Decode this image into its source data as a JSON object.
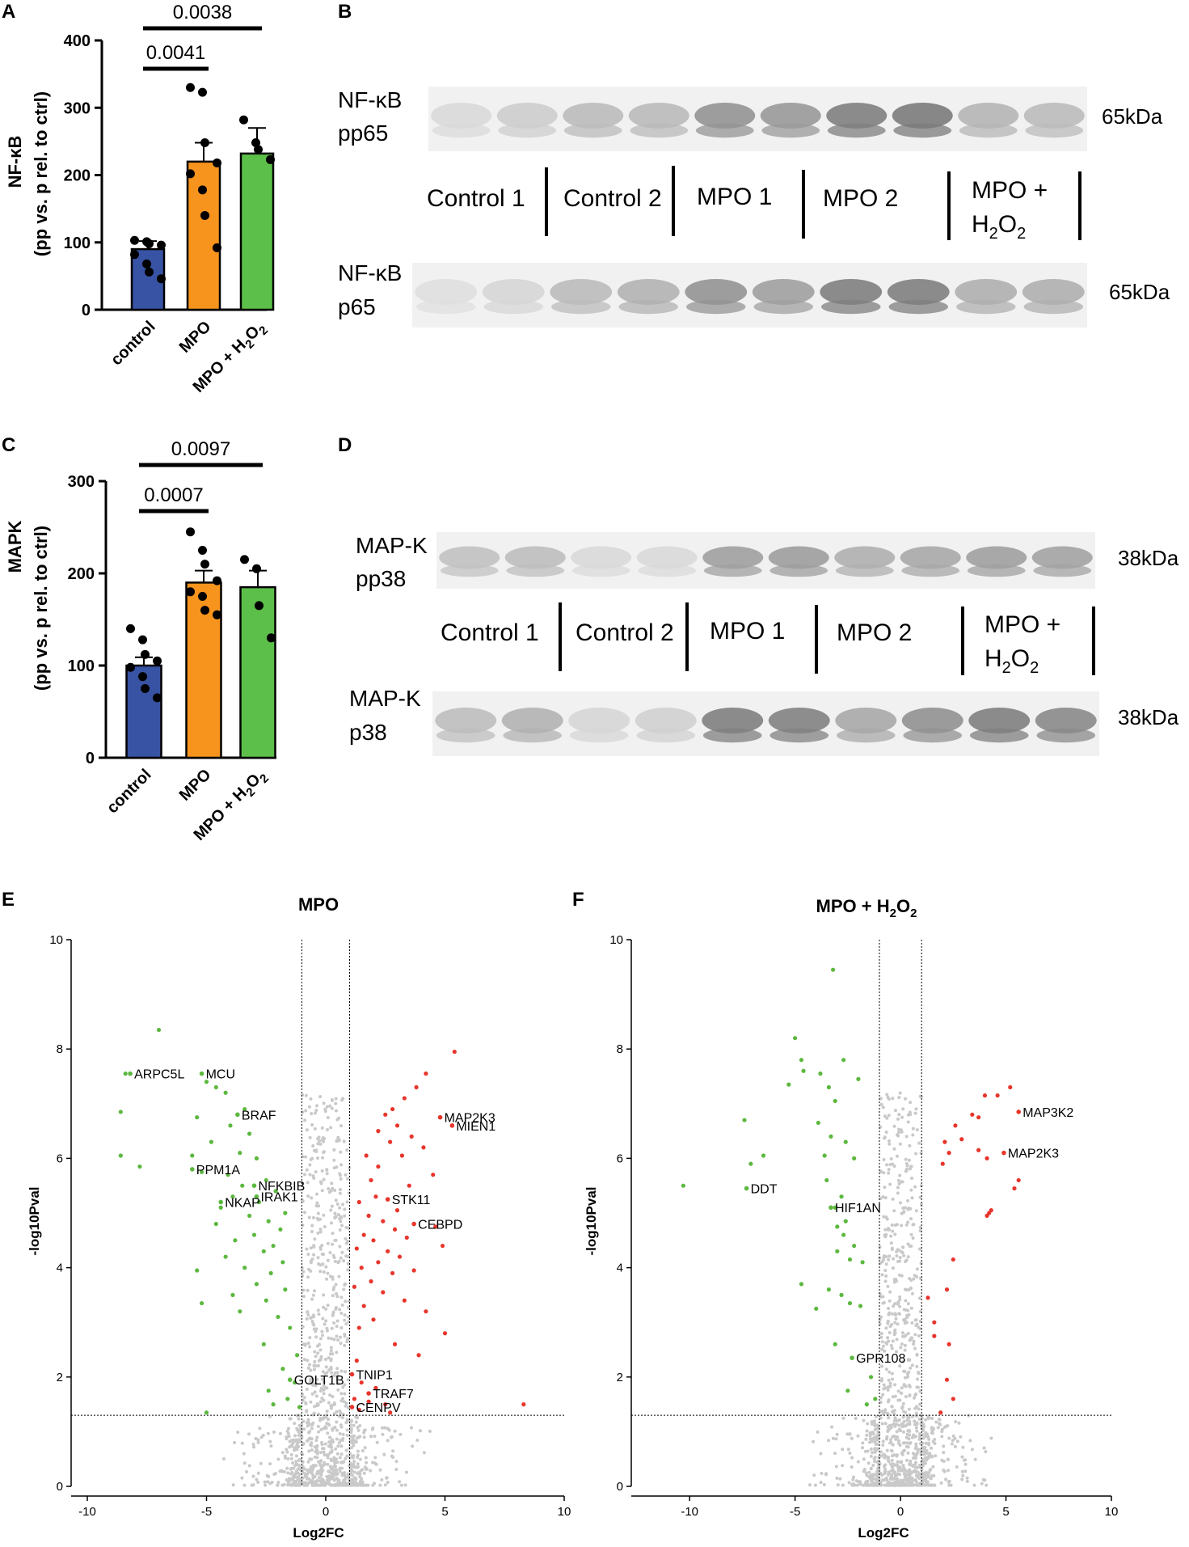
{
  "panel_letters": {
    "a": "A",
    "b": "B",
    "c": "C",
    "d": "D",
    "e": "E",
    "f": "F"
  },
  "colors": {
    "control": "#3853a4",
    "mpo": "#f7941d",
    "mpo_h2o2": "#5cbf4a",
    "up": "#e8352b",
    "down": "#5cb83f",
    "ns": "#c9c9c9"
  },
  "chart_data": [
    {
      "panel": "A",
      "type": "bar",
      "categories": [
        "control",
        "MPO",
        "MPO + H2O2"
      ],
      "values": [
        90,
        220,
        232
      ],
      "errors": [
        12,
        28,
        38
      ],
      "points": [
        [
          103,
          101,
          98,
          96,
          82,
          68,
          56,
          46
        ],
        [
          330,
          323,
          248,
          218,
          202,
          178,
          140,
          92
        ],
        [
          282,
          248,
          238,
          223
        ]
      ],
      "ylabel": "(pp vs. p rel. to ctrl)",
      "ylabel_title": "NF-κB",
      "ylim": [
        0,
        400
      ],
      "yticks": [
        "0",
        "100",
        "200",
        "300",
        "400"
      ],
      "comparisons": [
        {
          "from": "control",
          "to": "MPO",
          "label": "0.0041"
        },
        {
          "from": "control",
          "to": "MPO + H2O2",
          "label": "0.0038"
        }
      ]
    },
    {
      "panel": "C",
      "type": "bar",
      "categories": [
        "control",
        "MPO",
        "MPO + H2O2"
      ],
      "values": [
        100,
        190,
        185
      ],
      "errors": [
        9,
        13,
        18
      ],
      "points": [
        [
          140,
          128,
          112,
          105,
          98,
          88,
          75,
          65
        ],
        [
          245,
          225,
          210,
          192,
          180,
          175,
          160,
          155
        ],
        [
          215,
          205,
          165,
          130
        ]
      ],
      "ylabel": "(pp vs. p rel. to ctrl)",
      "ylabel_title": "MAPK",
      "ylim": [
        0,
        300
      ],
      "yticks": [
        "0",
        "100",
        "200",
        "300"
      ],
      "comparisons": [
        {
          "from": "control",
          "to": "MPO",
          "label": "0.0007"
        },
        {
          "from": "control",
          "to": "MPO + H2O2",
          "label": "0.0097"
        }
      ]
    },
    {
      "panel": "E",
      "type": "scatter",
      "title": "MPO",
      "xlabel": "Log2FC",
      "ylabel": "-log10Pval",
      "xlim": [
        -10,
        10
      ],
      "ylim": [
        0,
        10
      ],
      "xticks": [
        "-10",
        "-5",
        "0",
        "5",
        "10"
      ],
      "yticks": [
        "0",
        "2",
        "4",
        "6",
        "8",
        "10"
      ],
      "fc_cutoffs": [
        -1,
        1
      ],
      "p_cutoff": 1.3,
      "labeled_genes": [
        {
          "gene": "ARPC5L",
          "x": -8.2,
          "y": 7.55
        },
        {
          "gene": "MCU",
          "x": -5.2,
          "y": 7.55
        },
        {
          "gene": "BRAF",
          "x": -3.7,
          "y": 6.8
        },
        {
          "gene": "PPM1A",
          "x": -5.6,
          "y": 5.8
        },
        {
          "gene": "NFKBIB",
          "x": -3.0,
          "y": 5.5
        },
        {
          "gene": "IRAK1",
          "x": -2.9,
          "y": 5.3
        },
        {
          "gene": "NKAP",
          "x": -4.4,
          "y": 5.2
        },
        {
          "gene": "MAP2K3",
          "x": 4.8,
          "y": 6.75
        },
        {
          "gene": "MIEN1",
          "x": 5.3,
          "y": 6.6
        },
        {
          "gene": "STK11",
          "x": 2.6,
          "y": 5.25
        },
        {
          "gene": "CEBPD",
          "x": 3.7,
          "y": 4.8
        },
        {
          "gene": "GOLT1B",
          "x": -1.5,
          "y": 1.95
        },
        {
          "gene": "TNIP1",
          "x": 1.1,
          "y": 2.05
        },
        {
          "gene": "TRAF7",
          "x": 1.8,
          "y": 1.7
        },
        {
          "gene": "CENPV",
          "x": 1.1,
          "y": 1.45
        }
      ],
      "points_up": [
        [
          5.4,
          7.95
        ],
        [
          4.2,
          7.55
        ],
        [
          3.8,
          7.3
        ],
        [
          3.3,
          7.1
        ],
        [
          2.8,
          6.9
        ],
        [
          2.5,
          6.8
        ],
        [
          3.0,
          6.6
        ],
        [
          2.2,
          6.5
        ],
        [
          3.6,
          6.4
        ],
        [
          2.7,
          6.3
        ],
        [
          4.1,
          6.2
        ],
        [
          3.2,
          6.05
        ],
        [
          1.7,
          6.05
        ],
        [
          2.2,
          5.85
        ],
        [
          4.5,
          5.7
        ],
        [
          1.9,
          5.6
        ],
        [
          3.5,
          5.5
        ],
        [
          2.1,
          5.3
        ],
        [
          1.4,
          5.2
        ],
        [
          3.0,
          5.05
        ],
        [
          1.8,
          4.95
        ],
        [
          2.4,
          4.85
        ],
        [
          4.6,
          4.75
        ],
        [
          2.9,
          4.7
        ],
        [
          1.6,
          4.6
        ],
        [
          3.4,
          4.55
        ],
        [
          2.0,
          4.5
        ],
        [
          4.9,
          4.4
        ],
        [
          1.3,
          4.35
        ],
        [
          2.6,
          4.3
        ],
        [
          3.1,
          4.2
        ],
        [
          2.2,
          4.1
        ],
        [
          1.5,
          4.0
        ],
        [
          3.7,
          3.95
        ],
        [
          2.8,
          3.9
        ],
        [
          1.9,
          3.75
        ],
        [
          1.2,
          3.65
        ],
        [
          2.4,
          3.55
        ],
        [
          3.3,
          3.4
        ],
        [
          1.6,
          3.3
        ],
        [
          4.2,
          3.2
        ],
        [
          2.0,
          3.05
        ],
        [
          1.4,
          2.9
        ],
        [
          5.0,
          2.8
        ],
        [
          2.9,
          2.6
        ],
        [
          3.9,
          2.4
        ],
        [
          1.3,
          2.3
        ],
        [
          1.5,
          1.9
        ],
        [
          2.1,
          1.8
        ],
        [
          1.2,
          1.6
        ],
        [
          1.8,
          1.55
        ],
        [
          2.5,
          1.5
        ],
        [
          1.4,
          1.4
        ],
        [
          2.7,
          1.35
        ],
        [
          8.3,
          1.5
        ]
      ],
      "points_down": [
        [
          -7.0,
          8.35
        ],
        [
          -8.4,
          7.55
        ],
        [
          -5.0,
          7.4
        ],
        [
          -4.6,
          7.3
        ],
        [
          -4.2,
          7.2
        ],
        [
          -3.4,
          6.9
        ],
        [
          -8.6,
          6.85
        ],
        [
          -5.4,
          6.75
        ],
        [
          -4.0,
          6.6
        ],
        [
          -3.2,
          6.45
        ],
        [
          -4.8,
          6.3
        ],
        [
          -3.6,
          6.1
        ],
        [
          -2.9,
          6.0
        ],
        [
          -5.6,
          6.05
        ],
        [
          -8.6,
          6.05
        ],
        [
          -7.8,
          5.85
        ],
        [
          -5.2,
          5.75
        ],
        [
          -4.1,
          5.7
        ],
        [
          -2.5,
          5.6
        ],
        [
          -3.5,
          5.5
        ],
        [
          -2.1,
          5.4
        ],
        [
          -3.9,
          5.3
        ],
        [
          -2.8,
          5.2
        ],
        [
          -4.4,
          5.1
        ],
        [
          -1.7,
          5.0
        ],
        [
          -3.2,
          4.95
        ],
        [
          -2.4,
          4.85
        ],
        [
          -4.6,
          4.8
        ],
        [
          -1.9,
          4.7
        ],
        [
          -3.0,
          4.6
        ],
        [
          -3.8,
          4.5
        ],
        [
          -2.2,
          4.4
        ],
        [
          -2.6,
          4.3
        ],
        [
          -4.2,
          4.2
        ],
        [
          -1.8,
          4.1
        ],
        [
          -3.4,
          4.0
        ],
        [
          -2.3,
          3.9
        ],
        [
          -5.4,
          3.95
        ],
        [
          -2.9,
          3.7
        ],
        [
          -1.7,
          3.6
        ],
        [
          -3.9,
          3.5
        ],
        [
          -2.5,
          3.4
        ],
        [
          -5.2,
          3.35
        ],
        [
          -3.6,
          3.2
        ],
        [
          -2.0,
          3.1
        ],
        [
          -1.5,
          2.9
        ],
        [
          -2.6,
          2.6
        ],
        [
          -1.2,
          2.4
        ],
        [
          -1.8,
          2.15
        ],
        [
          -1.3,
          1.9
        ],
        [
          -2.4,
          1.75
        ],
        [
          -1.6,
          1.6
        ],
        [
          -2.2,
          1.5
        ],
        [
          -1.1,
          1.45
        ],
        [
          -5.0,
          1.35
        ]
      ]
    },
    {
      "panel": "F",
      "type": "scatter",
      "title": "MPO + H2O2",
      "xlabel": "Log2FC",
      "ylabel": "-log10Pval",
      "xlim": [
        -12,
        10
      ],
      "ylim": [
        0,
        10
      ],
      "xticks": [
        "-10",
        "-5",
        "0",
        "5",
        "10"
      ],
      "yticks": [
        "0",
        "2",
        "4",
        "6",
        "8",
        "10"
      ],
      "fc_cutoffs": [
        -1,
        1
      ],
      "p_cutoff": 1.3,
      "labeled_genes": [
        {
          "gene": "DDT",
          "x": -7.3,
          "y": 5.45
        },
        {
          "gene": "HIF1AN",
          "x": -3.3,
          "y": 5.1
        },
        {
          "gene": "GPR108",
          "x": -2.3,
          "y": 2.35
        },
        {
          "gene": "MAP3K2",
          "x": 5.6,
          "y": 6.85
        },
        {
          "gene": "MAP2K3",
          "x": 4.9,
          "y": 6.1
        }
      ],
      "points_up": [
        [
          5.2,
          7.3
        ],
        [
          4.6,
          7.15
        ],
        [
          4.0,
          7.15
        ],
        [
          3.4,
          6.8
        ],
        [
          3.7,
          6.75
        ],
        [
          2.6,
          6.6
        ],
        [
          2.9,
          6.35
        ],
        [
          2.1,
          6.3
        ],
        [
          2.3,
          6.1
        ],
        [
          3.7,
          6.15
        ],
        [
          4.1,
          6.0
        ],
        [
          2.0,
          5.9
        ],
        [
          5.6,
          5.6
        ],
        [
          5.4,
          5.45
        ],
        [
          4.3,
          5.05
        ],
        [
          4.1,
          4.95
        ],
        [
          4.2,
          5.0
        ],
        [
          2.5,
          4.15
        ],
        [
          2.2,
          3.6
        ],
        [
          1.3,
          3.45
        ],
        [
          1.6,
          3.0
        ],
        [
          1.6,
          2.75
        ],
        [
          2.3,
          2.6
        ],
        [
          2.2,
          1.95
        ],
        [
          2.5,
          1.6
        ],
        [
          1.9,
          1.35
        ]
      ],
      "points_down": [
        [
          -3.2,
          9.45
        ],
        [
          -5.0,
          8.2
        ],
        [
          -4.7,
          7.8
        ],
        [
          -2.7,
          7.8
        ],
        [
          -4.6,
          7.6
        ],
        [
          -3.8,
          7.55
        ],
        [
          -2.0,
          7.45
        ],
        [
          -5.3,
          7.35
        ],
        [
          -3.4,
          7.3
        ],
        [
          -3.1,
          7.05
        ],
        [
          -7.4,
          6.7
        ],
        [
          -3.9,
          6.65
        ],
        [
          -3.3,
          6.4
        ],
        [
          -2.6,
          6.3
        ],
        [
          -6.5,
          6.05
        ],
        [
          -7.1,
          5.9
        ],
        [
          -3.6,
          6.05
        ],
        [
          -2.2,
          6.0
        ],
        [
          -3.5,
          5.6
        ],
        [
          -2.8,
          5.3
        ],
        [
          -10.3,
          5.5
        ],
        [
          -3.1,
          5.1
        ],
        [
          -2.6,
          4.85
        ],
        [
          -3.0,
          4.75
        ],
        [
          -2.7,
          4.6
        ],
        [
          -2.2,
          4.4
        ],
        [
          -3.0,
          4.3
        ],
        [
          -2.4,
          4.15
        ],
        [
          -1.8,
          4.1
        ],
        [
          -4.7,
          3.7
        ],
        [
          -3.4,
          3.6
        ],
        [
          -2.8,
          3.5
        ],
        [
          -2.4,
          3.35
        ],
        [
          -4.0,
          3.25
        ],
        [
          -1.9,
          3.3
        ],
        [
          -3.1,
          2.6
        ],
        [
          -1.4,
          2.0
        ],
        [
          -2.5,
          1.75
        ],
        [
          -1.2,
          1.6
        ],
        [
          -1.6,
          1.5
        ]
      ]
    }
  ],
  "blot_b": {
    "top_label": [
      "NF-κB",
      "pp65"
    ],
    "bottom_label": [
      "NF-κB",
      "p65"
    ],
    "top_kda": "65kDa",
    "bottom_kda": "65kDa",
    "lanes": [
      "Control 1",
      "Control 2",
      "MPO 1",
      "MPO 2",
      "MPO +"
    ],
    "lane5_suffix": "H",
    "lane5_sub1": "2",
    "lane5_mid": "O",
    "lane5_sub2": "2",
    "top_intensity": [
      0.12,
      0.2,
      0.32,
      0.33,
      0.58,
      0.55,
      0.72,
      0.75,
      0.36,
      0.32
    ],
    "bottom_intensity": [
      0.08,
      0.14,
      0.32,
      0.38,
      0.58,
      0.5,
      0.72,
      0.72,
      0.4,
      0.4
    ]
  },
  "blot_d": {
    "top_label": [
      "MAP-K",
      "pp38"
    ],
    "bottom_label": [
      "MAP-K",
      "p38"
    ],
    "top_kda": "38kDa",
    "bottom_kda": "38kDa",
    "lanes": [
      "Control 1",
      "Control 2",
      "MPO 1",
      "MPO 2",
      "MPO +"
    ],
    "lane5_suffix": "H",
    "lane5_sub1": "2",
    "lane5_mid": "O",
    "lane5_sub2": "2",
    "top_intensity": [
      0.28,
      0.3,
      0.12,
      0.12,
      0.5,
      0.52,
      0.4,
      0.45,
      0.5,
      0.48
    ],
    "bottom_intensity": [
      0.3,
      0.38,
      0.14,
      0.18,
      0.72,
      0.7,
      0.45,
      0.6,
      0.72,
      0.65
    ]
  }
}
